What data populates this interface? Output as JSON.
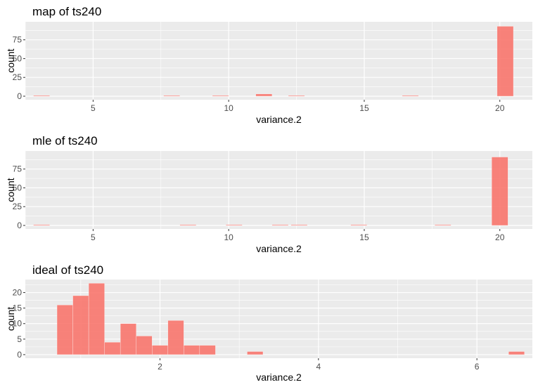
{
  "colors": {
    "panel": "#ebebeb",
    "grid_major": "#ffffff",
    "bar_fill": "#f8766d",
    "bar_alpha": 0.9,
    "tick_text": "#4d4d4d",
    "tick_mark": "#333333"
  },
  "chart_data": [
    {
      "type": "bar",
      "title": "map of ts240",
      "xlabel": "variance.2",
      "ylabel": "count",
      "xlim": [
        2.5,
        21.2
      ],
      "ylim": [
        -4.7,
        99
      ],
      "xticks": [
        5,
        10,
        15,
        20
      ],
      "xtick_labels": [
        "5",
        "10",
        "15",
        "20"
      ],
      "yticks": [
        0,
        25,
        50,
        75
      ],
      "ytick_labels": [
        "0",
        "25",
        "50",
        "75"
      ],
      "grid": true,
      "bins": [
        {
          "x0": 2.8,
          "x1": 3.4,
          "count": 1
        },
        {
          "x0": 7.6,
          "x1": 8.2,
          "count": 1
        },
        {
          "x0": 9.4,
          "x1": 10.0,
          "count": 1
        },
        {
          "x0": 11.0,
          "x1": 11.6,
          "count": 3
        },
        {
          "x0": 12.2,
          "x1": 12.8,
          "count": 1
        },
        {
          "x0": 16.4,
          "x1": 17.0,
          "count": 1
        },
        {
          "x0": 19.9,
          "x1": 20.5,
          "count": 93
        }
      ]
    },
    {
      "type": "bar",
      "title": "mle of ts240",
      "xlabel": "variance.2",
      "ylabel": "count",
      "xlim": [
        2.5,
        21.2
      ],
      "ylim": [
        -4.7,
        99
      ],
      "xticks": [
        5,
        10,
        15,
        20
      ],
      "xtick_labels": [
        "5",
        "10",
        "15",
        "20"
      ],
      "yticks": [
        0,
        25,
        50,
        75
      ],
      "ytick_labels": [
        "0",
        "25",
        "50",
        "75"
      ],
      "grid": true,
      "bins": [
        {
          "x0": 2.8,
          "x1": 3.4,
          "count": 1
        },
        {
          "x0": 8.2,
          "x1": 8.8,
          "count": 1
        },
        {
          "x0": 9.9,
          "x1": 10.5,
          "count": 1
        },
        {
          "x0": 11.6,
          "x1": 12.2,
          "count": 1
        },
        {
          "x0": 12.3,
          "x1": 12.9,
          "count": 1
        },
        {
          "x0": 14.5,
          "x1": 15.1,
          "count": 1
        },
        {
          "x0": 17.6,
          "x1": 18.2,
          "count": 1
        },
        {
          "x0": 19.7,
          "x1": 20.3,
          "count": 91
        }
      ]
    },
    {
      "type": "bar",
      "title": "ideal of ts240",
      "xlabel": "variance.2",
      "ylabel": "count",
      "xlim": [
        0.3,
        6.7
      ],
      "ylim": [
        -1.15,
        24.2
      ],
      "xticks": [
        2,
        4,
        6
      ],
      "xtick_labels": [
        "2",
        "4",
        "6"
      ],
      "yticks": [
        0,
        5,
        10,
        15,
        20
      ],
      "ytick_labels": [
        "0",
        "5",
        "10",
        "15",
        "20"
      ],
      "grid": true,
      "bins": [
        {
          "x0": 0.7,
          "x1": 0.9,
          "count": 16
        },
        {
          "x0": 0.9,
          "x1": 1.1,
          "count": 19
        },
        {
          "x0": 1.1,
          "x1": 1.3,
          "count": 23
        },
        {
          "x0": 1.3,
          "x1": 1.5,
          "count": 4
        },
        {
          "x0": 1.5,
          "x1": 1.7,
          "count": 10
        },
        {
          "x0": 1.7,
          "x1": 1.9,
          "count": 6
        },
        {
          "x0": 1.9,
          "x1": 2.1,
          "count": 3
        },
        {
          "x0": 2.1,
          "x1": 2.3,
          "count": 11
        },
        {
          "x0": 2.3,
          "x1": 2.5,
          "count": 3
        },
        {
          "x0": 2.5,
          "x1": 2.7,
          "count": 3
        },
        {
          "x0": 3.1,
          "x1": 3.3,
          "count": 1
        },
        {
          "x0": 6.4,
          "x1": 6.6,
          "count": 1
        }
      ]
    }
  ]
}
